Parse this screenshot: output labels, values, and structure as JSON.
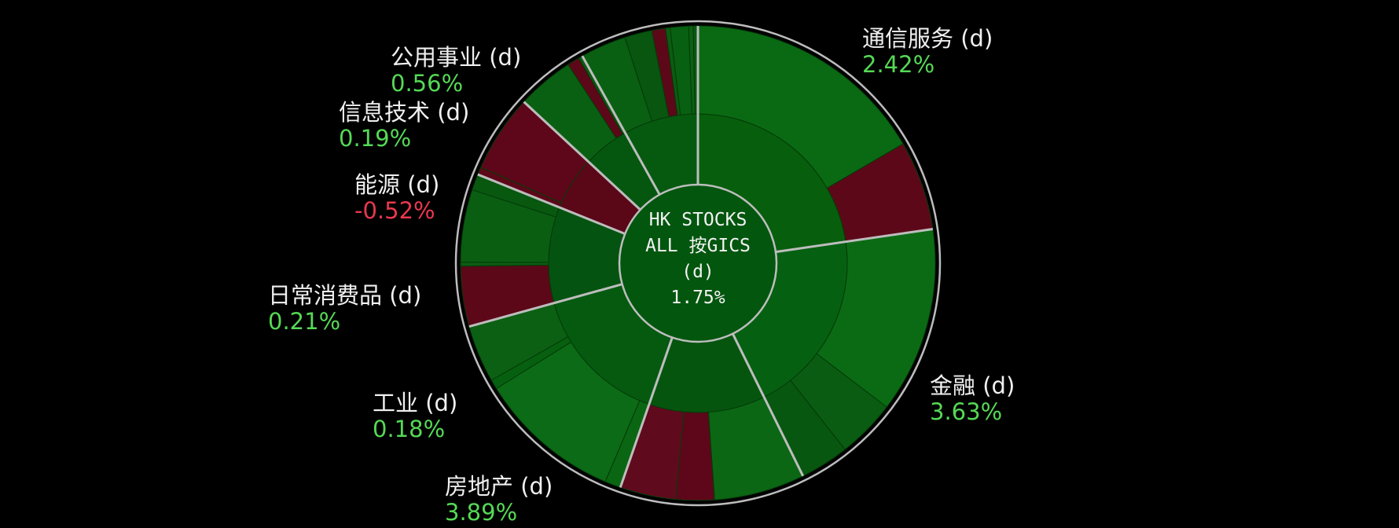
{
  "chart_data": {
    "type": "sunburst",
    "title": "",
    "center": {
      "lines": [
        "HK STOCKS",
        "ALL 按GICS",
        "(d)"
      ],
      "value": "1.75%"
    },
    "sectors": [
      {
        "name": "通信服务 (d)",
        "value": "2.42%",
        "change": 2.42,
        "weight": 22.7,
        "inner": [
          {
            "w": 1,
            "c": "#075e0c"
          }
        ],
        "outer": [
          {
            "w": 60,
            "c": "#0a6a13"
          },
          {
            "w": 22,
            "c": "#5c0818"
          }
        ]
      },
      {
        "name": "金融 (d)",
        "value": "3.63%",
        "change": 3.63,
        "weight": 20.0,
        "inner": [
          {
            "w": 1,
            "c": "#066012"
          }
        ],
        "outer": [
          {
            "w": 38,
            "c": "#0b6b14"
          },
          {
            "w": 12,
            "c": "#0a5c12"
          },
          {
            "w": 10,
            "c": "#085710"
          }
        ]
      },
      {
        "name": "房地产 (d)",
        "value": "3.89%",
        "change": 3.89,
        "weight": 12.6,
        "inner": [
          {
            "w": 1,
            "c": "#06550f"
          }
        ],
        "outer": [
          {
            "w": 26,
            "c": "#0b6714"
          },
          {
            "w": 11,
            "c": "#5e071a"
          },
          {
            "w": 16,
            "c": "#600a1e"
          }
        ]
      },
      {
        "name": "工业 (d)",
        "value": "0.18%",
        "change": 0.18,
        "weight": 15.4,
        "inner": [
          {
            "w": 1,
            "c": "#055a10"
          }
        ],
        "outer": [
          {
            "w": 5,
            "c": "#0a6612"
          },
          {
            "w": 45,
            "c": "#0c6b16"
          },
          {
            "w": 3,
            "c": "#066010"
          },
          {
            "w": 18,
            "c": "#0b6013"
          }
        ]
      },
      {
        "name": "日常消费品 (d)",
        "value": "0.21%",
        "change": 0.21,
        "weight": 10.4,
        "inner": [
          {
            "w": 1,
            "c": "#055310"
          }
        ],
        "outer": [
          {
            "w": 15,
            "c": "#5c0818"
          },
          {
            "w": 1,
            "c": "#0b5c12"
          },
          {
            "w": 18,
            "c": "#0a5e12"
          },
          {
            "w": 4,
            "c": "#085810"
          }
        ]
      },
      {
        "name": "能源 (d)",
        "value": "-0.52%",
        "change": -0.52,
        "weight": 5.8,
        "inner": [
          {
            "w": 1,
            "c": "#5a0718"
          }
        ],
        "outer": [
          {
            "w": 2,
            "c": "#5c0818"
          },
          {
            "w": 20,
            "c": "#5e071a"
          }
        ]
      },
      {
        "name": "信息技术 (d)",
        "value": "0.19%",
        "change": 0.19,
        "weight": 5.0,
        "inner": [
          {
            "w": 1,
            "c": "#055710"
          }
        ],
        "outer": [
          {
            "w": 14,
            "c": "#0a6012"
          },
          {
            "w": 3,
            "c": "#5c0818"
          },
          {
            "w": 1,
            "c": "#0b5a12"
          }
        ]
      },
      {
        "name": "公用事业 (d)",
        "value": "0.56%",
        "change": 0.56,
        "weight": 8.1,
        "inner": [
          {
            "w": 1,
            "c": "#065a10"
          }
        ],
        "outer": [
          {
            "w": 10,
            "c": "#0a6012"
          },
          {
            "w": 6,
            "c": "#085610"
          },
          {
            "w": 3,
            "c": "#5c0818"
          },
          {
            "w": 1,
            "c": "#0b5c12"
          },
          {
            "w": 4,
            "c": "#086012"
          },
          {
            "w": 1,
            "c": "#0b6212"
          },
          {
            "w": 1,
            "c": "#0a5a12"
          }
        ]
      }
    ],
    "colors": {
      "positive_text": "#55d955",
      "negative_text": "#e8384f",
      "separator": "#bdbdbd"
    }
  }
}
